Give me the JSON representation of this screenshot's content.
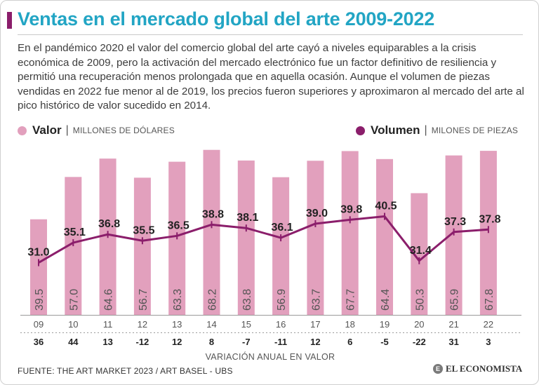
{
  "title": "Ventas en el mercado global del arte 2009-2022",
  "intro": "En el pandémico 2020 el valor del comercio global del arte cayó a niveles equiparables a la crisis económica de 2009, pero la activación del mercado electrónico fue un factor definitivo de resiliencia y permitió una recuperación menos prolongada que en aquella ocasión. Aunque el volumen de piezas vendidas en 2022 fue menor al de 2019, los precios fueron superiores y aproximaron al mercado del arte al pico histórico de valor sucedido en 2014.",
  "legend": {
    "value_label": "Valor",
    "value_unit": "MILLONES DE DÓLARES",
    "volume_label": "Volumen",
    "volume_unit": "MILONES DE PIEZAS",
    "separator": "|"
  },
  "colors": {
    "bar": "#e2a0bd",
    "line": "#8b1e6b",
    "title": "#22a5c4",
    "bar_text": "#555555"
  },
  "chart_data": {
    "type": "bar+line",
    "categories": [
      "09",
      "10",
      "11",
      "12",
      "13",
      "14",
      "15",
      "16",
      "17",
      "18",
      "19",
      "20",
      "21",
      "22"
    ],
    "series": [
      {
        "name": "Valor",
        "unit": "MILLONES DE DÓLARES",
        "values": [
          "39.5",
          "57.0",
          "64.6",
          "56.7",
          "63.3",
          "68.2",
          "63.8",
          "56.9",
          "63.7",
          "67.7",
          "64.4",
          "50.3",
          "65.9",
          "67.8"
        ]
      },
      {
        "name": "Volumen",
        "unit": "MILONES DE PIEZAS",
        "values": [
          "31.0",
          "35.1",
          "36.8",
          "35.5",
          "36.5",
          "38.8",
          "38.1",
          "36.1",
          "39.0",
          "39.8",
          "40.5",
          "31.4",
          "37.3",
          "37.8"
        ]
      }
    ],
    "variation": [
      "36",
      "44",
      "13",
      "-12",
      "12",
      "8",
      "-7",
      "-11",
      "12",
      "6",
      "-5",
      "-22",
      "31",
      "3"
    ],
    "variation_label": "VARIACIÓN ANUAL EN VALOR",
    "bar_ylim": [
      0,
      70
    ],
    "line_ylim": [
      25,
      45
    ]
  },
  "footer": {
    "source": "FUENTE: THE ART MARKET 2023 / ART BASEL - UBS",
    "brand": "EL ECONOMISTA",
    "brand_mark": "E"
  }
}
